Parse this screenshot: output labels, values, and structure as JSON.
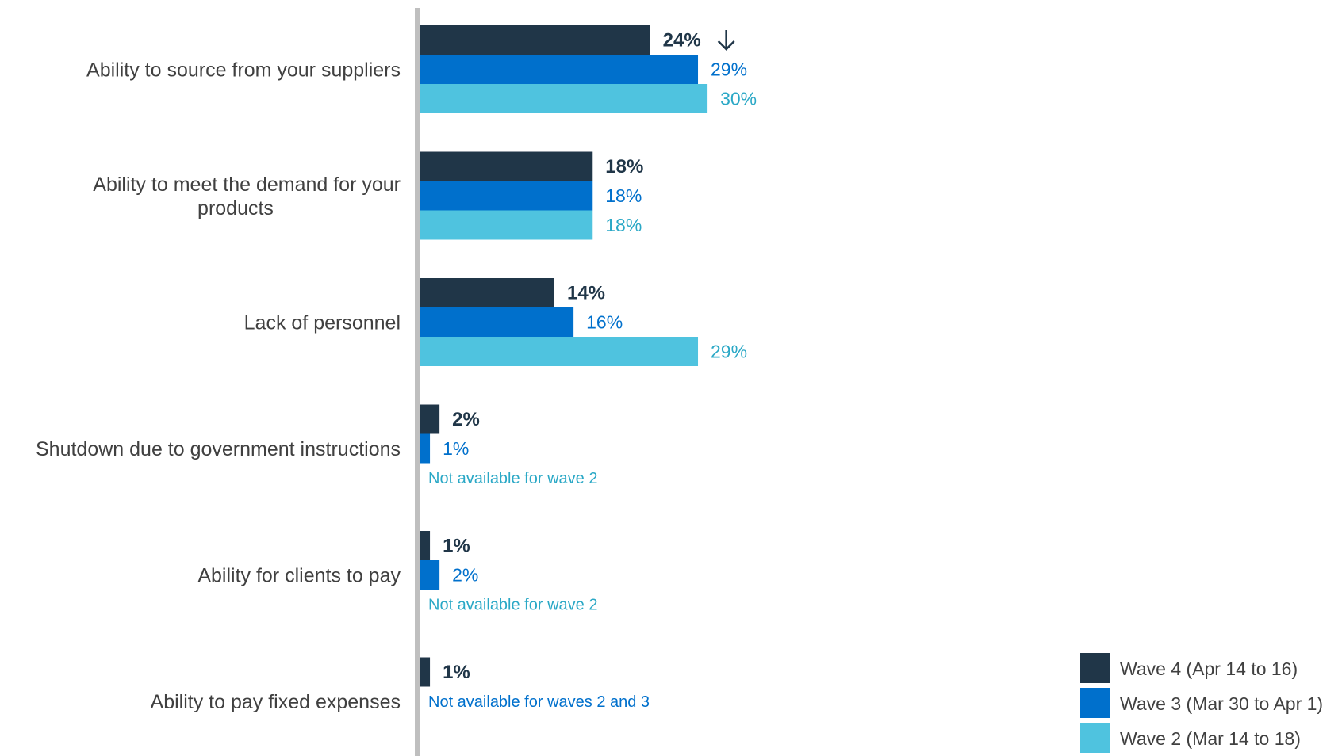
{
  "chart_data": {
    "type": "bar",
    "orientation": "horizontal",
    "categories": [
      [
        "Ability to source from your suppliers"
      ],
      [
        "Ability to meet the demand for your",
        "products"
      ],
      [
        "Lack of personnel"
      ],
      [
        "Shutdown due to government instructions"
      ],
      [
        "Ability for clients to pay"
      ],
      [
        "Ability to pay fixed expenses"
      ]
    ],
    "series": [
      {
        "name": "Wave 4 (Apr 14 to 16)",
        "color": "#203648",
        "label_color": "#203648",
        "bold": true,
        "values": [
          24,
          18,
          14,
          2,
          1,
          1
        ],
        "labels": [
          "24%",
          "18%",
          "14%",
          "2%",
          "1%",
          "1%"
        ]
      },
      {
        "name": "Wave 3 (Mar 30 to Apr 1)",
        "color": "#0070cc",
        "label_color": "#0070cc",
        "bold": false,
        "values": [
          29,
          18,
          16,
          1,
          2,
          null
        ],
        "labels": [
          "29%",
          "18%",
          "16%",
          "1%",
          "2%",
          null
        ]
      },
      {
        "name": "Wave 2 (Mar 14 to 18)",
        "color": "#4fc3df",
        "label_color": "#2aa8c6",
        "bold": false,
        "values": [
          30,
          18,
          29,
          null,
          null,
          null
        ],
        "labels": [
          "30%",
          "18%",
          "29%",
          null,
          null,
          null
        ]
      }
    ],
    "annotations": [
      {
        "category": 0,
        "series": 0,
        "marker": "down-arrow"
      }
    ],
    "not_available_notes": [
      {
        "category": 3,
        "text": "Not available for wave 2",
        "color": "#2aa8c6"
      },
      {
        "category": 4,
        "text": "Not available for wave 2",
        "color": "#2aa8c6"
      },
      {
        "category": 5,
        "text": "Not available for waves 2 and 3",
        "color": "#0070cc"
      }
    ],
    "xlim": [
      0,
      30
    ],
    "grid": false,
    "legend": {
      "position": "bottom-right"
    },
    "title": "",
    "xlabel": "",
    "ylabel": "",
    "axis_color": "#bfbfbf"
  }
}
